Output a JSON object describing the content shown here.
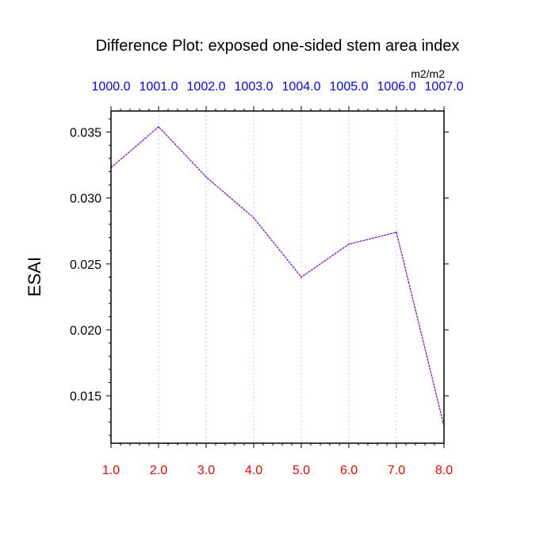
{
  "chart_data": {
    "type": "line",
    "title": "Difference Plot: exposed one-sided stem area index",
    "units": "m2/m2",
    "ylabel": "ESAI",
    "xlabel": "",
    "x": [
      1,
      2,
      3,
      4,
      5,
      6,
      7,
      8
    ],
    "x_tick_labels": [
      "1.0",
      "2.0",
      "3.0",
      "4.0",
      "5.0",
      "6.0",
      "7.0",
      "8.0"
    ],
    "top_tick_labels": [
      "1000.0",
      "1001.0",
      "1002.0",
      "1003.0",
      "1004.0",
      "1005.0",
      "1006.0",
      "1007.0"
    ],
    "series": [
      {
        "values": [
          0.0323,
          0.0354,
          0.0316,
          0.0285,
          0.024,
          0.0265,
          0.0274,
          0.0127
        ]
      }
    ],
    "y_ticks": [
      0.015,
      0.02,
      0.025,
      0.03,
      0.035
    ],
    "y_tick_labels": [
      "0.015",
      "0.020",
      "0.025",
      "0.030",
      "0.035"
    ],
    "xlim": [
      1,
      8
    ],
    "ylim": [
      0.0114,
      0.0366
    ],
    "grid": "vertical dotted",
    "colors": {
      "bottom_tick_labels": "#ff0000",
      "top_tick_labels": "#0000ff",
      "line": "#7700cc",
      "grid": "#c8c8c8",
      "axes": "#000000"
    }
  }
}
